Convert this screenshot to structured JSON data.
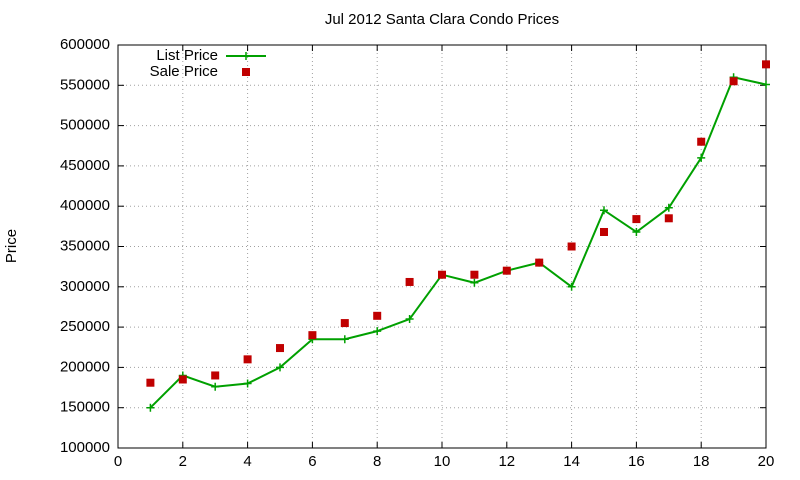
{
  "chart_data": {
    "type": "line",
    "title": "Jul 2012 Santa Clara Condo Prices",
    "y_label": "Price",
    "x": [
      1,
      2,
      3,
      4,
      5,
      6,
      7,
      8,
      9,
      10,
      11,
      12,
      13,
      14,
      15,
      16,
      17,
      18,
      19,
      20
    ],
    "series": [
      {
        "name": "List Price",
        "color": "#00a000",
        "style": "linespoints",
        "values": [
          150000,
          190000,
          176000,
          180000,
          200000,
          235000,
          235000,
          245000,
          260000,
          315000,
          305000,
          320000,
          330000,
          300000,
          395000,
          368000,
          398000,
          460000,
          560000,
          551000
        ]
      },
      {
        "name": "Sale Price",
        "color": "#c00000",
        "style": "points",
        "values": [
          181000,
          185000,
          190000,
          210000,
          224000,
          240000,
          255000,
          264000,
          306000,
          315000,
          315000,
          320000,
          330000,
          350000,
          368000,
          384000,
          385000,
          480000,
          555000,
          576000
        ]
      }
    ],
    "xlim": [
      0,
      20
    ],
    "xticks": [
      0,
      2,
      4,
      6,
      8,
      10,
      12,
      14,
      16,
      18,
      20
    ],
    "ylim": [
      100000,
      600000
    ],
    "yticks": [
      100000,
      150000,
      200000,
      250000,
      300000,
      350000,
      400000,
      450000,
      500000,
      550000,
      600000
    ],
    "grid": true,
    "legend": "top-left"
  }
}
